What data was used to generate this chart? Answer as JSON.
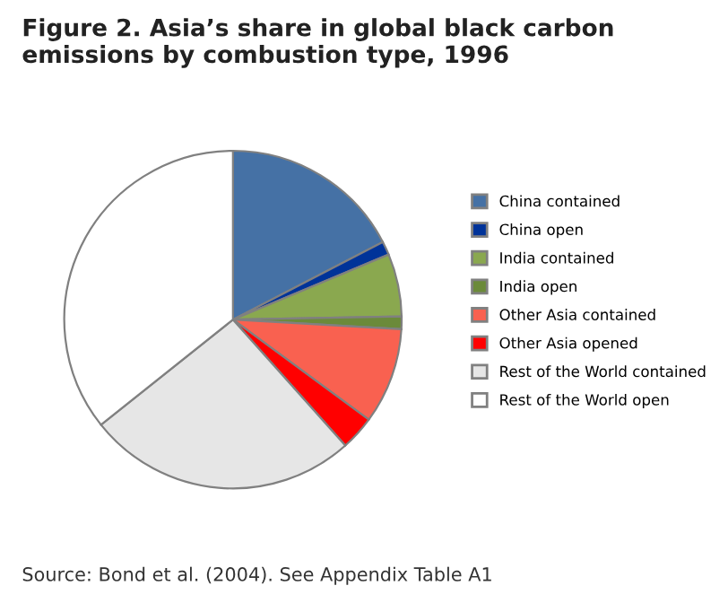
{
  "chart_data": {
    "type": "pie",
    "title": "Figure 2. Asia’s share in global black carbon emissions by combustion type, 1996",
    "categories": [
      "China contained",
      "China open",
      "India contained",
      "India open",
      "Other Asia contained",
      "Other Asia opened",
      "Rest of the World contained",
      "Rest of the World open"
    ],
    "values": [
      17.4,
      1.3,
      6.0,
      1.2,
      9.2,
      3.3,
      25.9,
      35.7
    ],
    "colors": [
      "#4571a5",
      "#003399",
      "#8aa84f",
      "#6b8a3a",
      "#f96150",
      "#ff0000",
      "#e6e6e6",
      "#ffffff"
    ],
    "legend": "right",
    "annotations": [
      "Source: Bond et al. (2004). See Appendix Table A1"
    ]
  }
}
